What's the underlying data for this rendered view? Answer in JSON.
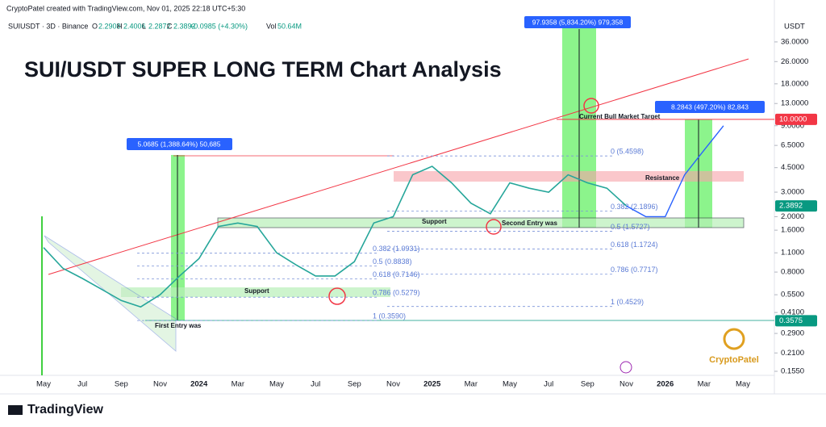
{
  "header": {
    "watermark": "CryptoPatel created with TradingView.com, Nov 01, 2025 22:18 UTC+5:30",
    "symbol": "SUIUSDT · 3D · Binance",
    "ohlc": [
      {
        "key": "O",
        "value": "2.2908"
      },
      {
        "key": "H",
        "value": "2.4006"
      },
      {
        "key": "L",
        "value": "2.2872"
      },
      {
        "key": "C",
        "value": "2.3892"
      }
    ],
    "change": "+0.0985 (+4.30%)",
    "volume": {
      "key": "Vol",
      "value": "50.64M"
    }
  },
  "chart_data": {
    "type": "line",
    "title": "SUI/USDT SUPER LONG TERM Chart Analysis",
    "y_unit": "USDT",
    "log_scale": true,
    "categories": [
      "May",
      null,
      "Jul",
      null,
      "Sep",
      null,
      "Nov",
      null,
      "2024",
      null,
      "Mar",
      null,
      "May",
      null,
      "Jul",
      null,
      "Sep",
      null,
      "Nov",
      null,
      "2025",
      null,
      "Mar",
      null,
      "May",
      null,
      "Jul",
      null,
      "Sep",
      null,
      "Nov",
      null,
      "2026",
      null,
      "Mar",
      null,
      "May"
    ],
    "values": [
      1.2,
      0.85,
      0.72,
      0.6,
      0.5,
      0.45,
      0.55,
      0.75,
      1.0,
      1.7,
      1.8,
      1.7,
      1.1,
      0.9,
      0.75,
      0.75,
      0.95,
      1.8,
      2.0,
      4.0,
      4.6,
      3.5,
      2.5,
      2.1,
      3.5,
      3.2,
      3.0,
      4.0,
      3.5,
      3.2,
      2.3892,
      null,
      null,
      null,
      null,
      null,
      null
    ],
    "color": "#26a69a",
    "projection": {
      "color": "#2962ff",
      "values": [
        null,
        null,
        null,
        null,
        null,
        null,
        null,
        null,
        null,
        null,
        null,
        null,
        null,
        null,
        null,
        null,
        null,
        null,
        null,
        null,
        null,
        null,
        null,
        null,
        null,
        null,
        null,
        null,
        null,
        null,
        2.3892,
        2.0,
        2.0,
        4.0,
        6.0,
        9.0,
        null
      ]
    },
    "ylim": [
      0.145,
      72
    ],
    "yticks": [
      {
        "value": 36,
        "label": "36.0000"
      },
      {
        "value": 26,
        "label": "26.0000"
      },
      {
        "value": 18,
        "label": "18.0000"
      },
      {
        "value": 13,
        "label": "13.0000"
      },
      {
        "value": 9,
        "label": "9.0000"
      },
      {
        "value": 6.5,
        "label": "6.5000"
      },
      {
        "value": 4.5,
        "label": "4.5000"
      },
      {
        "value": 3,
        "label": "3.0000"
      },
      {
        "value": 2,
        "label": "2.0000"
      },
      {
        "value": 1.6,
        "label": "1.6000"
      },
      {
        "value": 1.1,
        "label": "1.1000"
      },
      {
        "value": 0.8,
        "label": "0.8000"
      },
      {
        "value": 0.55,
        "label": "0.5500"
      },
      {
        "value": 0.41,
        "label": "0.4100"
      },
      {
        "value": 0.29,
        "label": "0.2900"
      },
      {
        "value": 0.21,
        "label": "0.2100"
      },
      {
        "value": 0.155,
        "label": "0.1550"
      }
    ],
    "price_labels": [
      {
        "value": 10,
        "label": "10.0000",
        "color": "#f23645"
      },
      {
        "value": 2.3892,
        "label": "2.3892",
        "color": "#089981"
      },
      {
        "value": 0.3575,
        "label": "0.3575",
        "color": "#089981"
      }
    ],
    "fib_levels": [
      {
        "levels": [
          {
            "value": 1.0931,
            "label": "0.382 (1.0931)"
          },
          {
            "value": 0.8838,
            "label": "0.5 (0.8838)"
          },
          {
            "value": 0.7146,
            "label": "0.618 (0.7146)"
          },
          {
            "value": 0.5279,
            "label": "0.786 (0.5279)"
          },
          {
            "value": 0.359,
            "label": "1 (0.3590)"
          }
        ]
      },
      {
        "levels": [
          {
            "value": 5.4598,
            "label": "0 (5.4598)"
          },
          {
            "value": 2.1896,
            "label": "0.382 (2.1896)"
          },
          {
            "value": 1.5727,
            "label": "0.5 (1.5727)"
          },
          {
            "value": 1.1724,
            "label": "0.618 (1.1724)"
          },
          {
            "value": 0.7717,
            "label": "0.786 (0.7717)"
          },
          {
            "value": 0.4529,
            "label": "1 (0.4529)"
          }
        ]
      }
    ],
    "measure_boxes": [
      "97.9358 (5,834.20%) 979,358",
      "8.2843 (497.20%) 82,843",
      "5.0685 (1,388.64%) 50,685"
    ],
    "annotations": [
      "Current Bull Market Target",
      "Resistance",
      "Support",
      "Second Entry was",
      "Support",
      "First Entry was"
    ]
  },
  "logo": "CryptoPatel",
  "footer": {
    "brand": "TradingView"
  }
}
